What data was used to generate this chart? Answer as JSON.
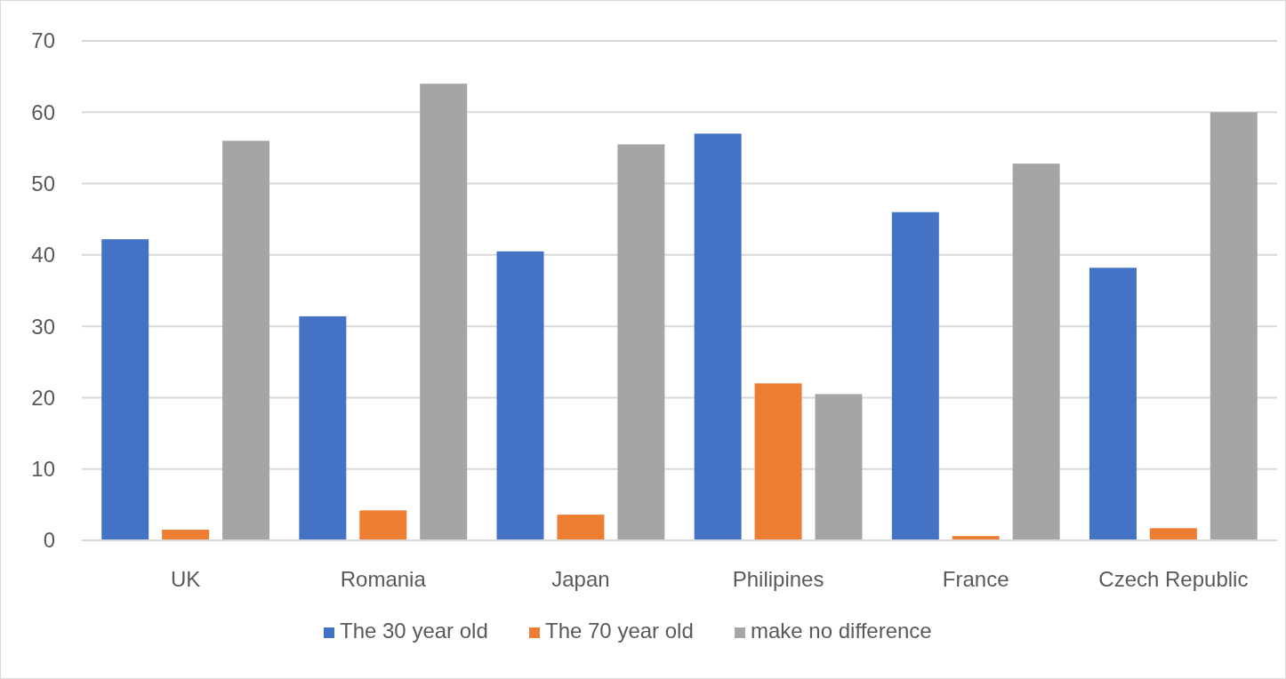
{
  "chart_data": {
    "type": "bar",
    "categories": [
      "UK",
      "Romania",
      "Japan",
      "Philipines",
      "France",
      "Czech Republic"
    ],
    "series": [
      {
        "name": "The 30 year old",
        "color": "#4472c4",
        "values": [
          42.2,
          31.4,
          40.5,
          57.0,
          46.0,
          38.2
        ]
      },
      {
        "name": "The 70 year old",
        "color": "#ed7d31",
        "values": [
          1.5,
          4.2,
          3.6,
          22.0,
          0.6,
          1.7
        ]
      },
      {
        "name": "make no difference",
        "color": "#a5a5a5",
        "values": [
          56.0,
          64.0,
          55.5,
          20.5,
          52.8,
          60.0
        ]
      }
    ],
    "ylim": [
      0,
      70
    ],
    "yticks": [
      0,
      10,
      20,
      30,
      40,
      50,
      60,
      70
    ],
    "grid": "y",
    "legend": "bottom"
  }
}
